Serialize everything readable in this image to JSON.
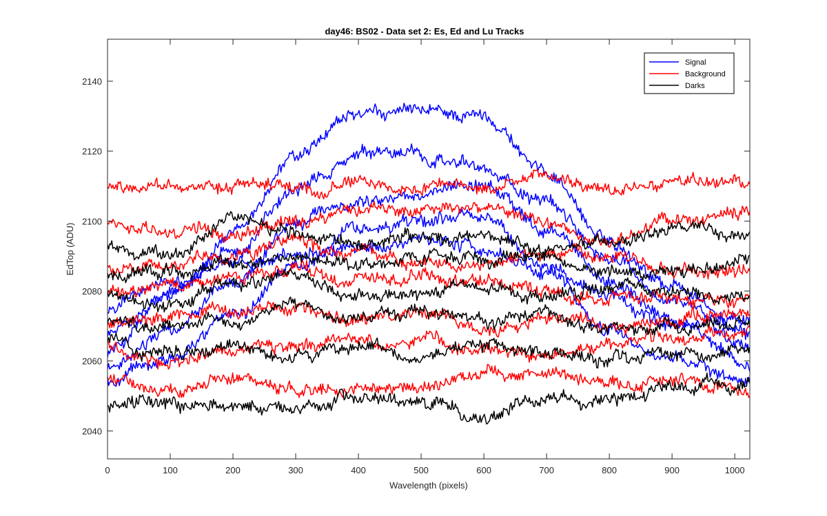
{
  "chart_data": {
    "type": "line",
    "title": "day46: BS02 - Data set 2: Es, Ed and Lu Tracks",
    "xlabel": "Wavelength (pixels)",
    "ylabel": "EdTop (ADU)",
    "xlim": [
      0,
      1024
    ],
    "ylim": [
      2032,
      2152
    ],
    "xticks": [
      0,
      100,
      200,
      300,
      400,
      500,
      600,
      700,
      800,
      900,
      1000
    ],
    "yticks": [
      2040,
      2060,
      2080,
      2100,
      2120,
      2140
    ],
    "grid": false,
    "legend_position": "top-right",
    "legend": [
      {
        "label": "Signal",
        "color": "#0000ff"
      },
      {
        "label": "Background",
        "color": "#ff0000"
      },
      {
        "label": "Darks",
        "color": "#000000"
      }
    ],
    "x": [
      0,
      100,
      200,
      300,
      400,
      500,
      600,
      700,
      800,
      900,
      1024
    ],
    "series": [
      {
        "group": "Signal",
        "color": "#0000ff",
        "values": [
          2063,
          2078,
          2096,
          2118,
          2130,
          2131,
          2130,
          2114,
          2094,
          2082,
          2067
        ]
      },
      {
        "group": "Signal",
        "color": "#0000ff",
        "values": [
          2068,
          2080,
          2092,
          2108,
          2118,
          2119,
          2115,
          2105,
          2090,
          2077,
          2064
        ]
      },
      {
        "group": "Signal",
        "color": "#0000ff",
        "values": [
          2058,
          2068,
          2082,
          2100,
          2106,
          2108,
          2110,
          2098,
          2082,
          2072,
          2058
        ]
      },
      {
        "group": "Signal",
        "color": "#0000ff",
        "values": [
          2055,
          2062,
          2073,
          2088,
          2098,
          2100,
          2102,
          2086,
          2068,
          2060,
          2054
        ]
      },
      {
        "group": "Signal",
        "color": "#0000ff",
        "values": [
          2075,
          2082,
          2087,
          2090,
          2092,
          2094,
          2092,
          2086,
          2078,
          2070,
          2072
        ]
      },
      {
        "group": "Background",
        "color": "#ff0000",
        "values": [
          2110,
          2110,
          2110,
          2110,
          2111,
          2110,
          2110,
          2114,
          2108,
          2111,
          2111
        ]
      },
      {
        "group": "Background",
        "color": "#ff0000",
        "values": [
          2099,
          2098,
          2096,
          2100,
          2104,
          2104,
          2104,
          2100,
          2094,
          2100,
          2102
        ]
      },
      {
        "group": "Background",
        "color": "#ff0000",
        "values": [
          2086,
          2088,
          2090,
          2094,
          2090,
          2088,
          2088,
          2092,
          2090,
          2086,
          2086
        ]
      },
      {
        "group": "Background",
        "color": "#ff0000",
        "values": [
          2080,
          2082,
          2084,
          2086,
          2082,
          2084,
          2082,
          2080,
          2078,
          2078,
          2078
        ]
      },
      {
        "group": "Background",
        "color": "#ff0000",
        "values": [
          2070,
          2072,
          2074,
          2076,
          2072,
          2074,
          2068,
          2072,
          2070,
          2072,
          2074
        ]
      },
      {
        "group": "Background",
        "color": "#ff0000",
        "values": [
          2064,
          2060,
          2064,
          2064,
          2066,
          2066,
          2064,
          2062,
          2064,
          2066,
          2068
        ]
      },
      {
        "group": "Background",
        "color": "#ff0000",
        "values": [
          2055,
          2052,
          2054,
          2052,
          2053,
          2052,
          2056,
          2058,
          2054,
          2054,
          2052
        ]
      },
      {
        "group": "Darks",
        "color": "#000000",
        "values": [
          2093,
          2090,
          2100,
          2096,
          2094,
          2095,
          2096,
          2092,
          2094,
          2098,
          2096
        ]
      },
      {
        "group": "Darks",
        "color": "#000000",
        "values": [
          2084,
          2086,
          2088,
          2090,
          2088,
          2090,
          2088,
          2090,
          2086,
          2086,
          2090
        ]
      },
      {
        "group": "Darks",
        "color": "#000000",
        "values": [
          2078,
          2076,
          2082,
          2084,
          2078,
          2080,
          2082,
          2078,
          2082,
          2080,
          2078
        ]
      },
      {
        "group": "Darks",
        "color": "#000000",
        "values": [
          2072,
          2070,
          2072,
          2076,
          2072,
          2074,
          2072,
          2074,
          2070,
          2070,
          2070
        ]
      },
      {
        "group": "Darks",
        "color": "#000000",
        "values": [
          2066,
          2062,
          2064,
          2060,
          2064,
          2062,
          2064,
          2062,
          2060,
          2062,
          2064
        ]
      },
      {
        "group": "Darks",
        "color": "#000000",
        "values": [
          2047,
          2048,
          2047,
          2047,
          2049,
          2049,
          2044,
          2050,
          2048,
          2052,
          2054
        ]
      }
    ]
  }
}
